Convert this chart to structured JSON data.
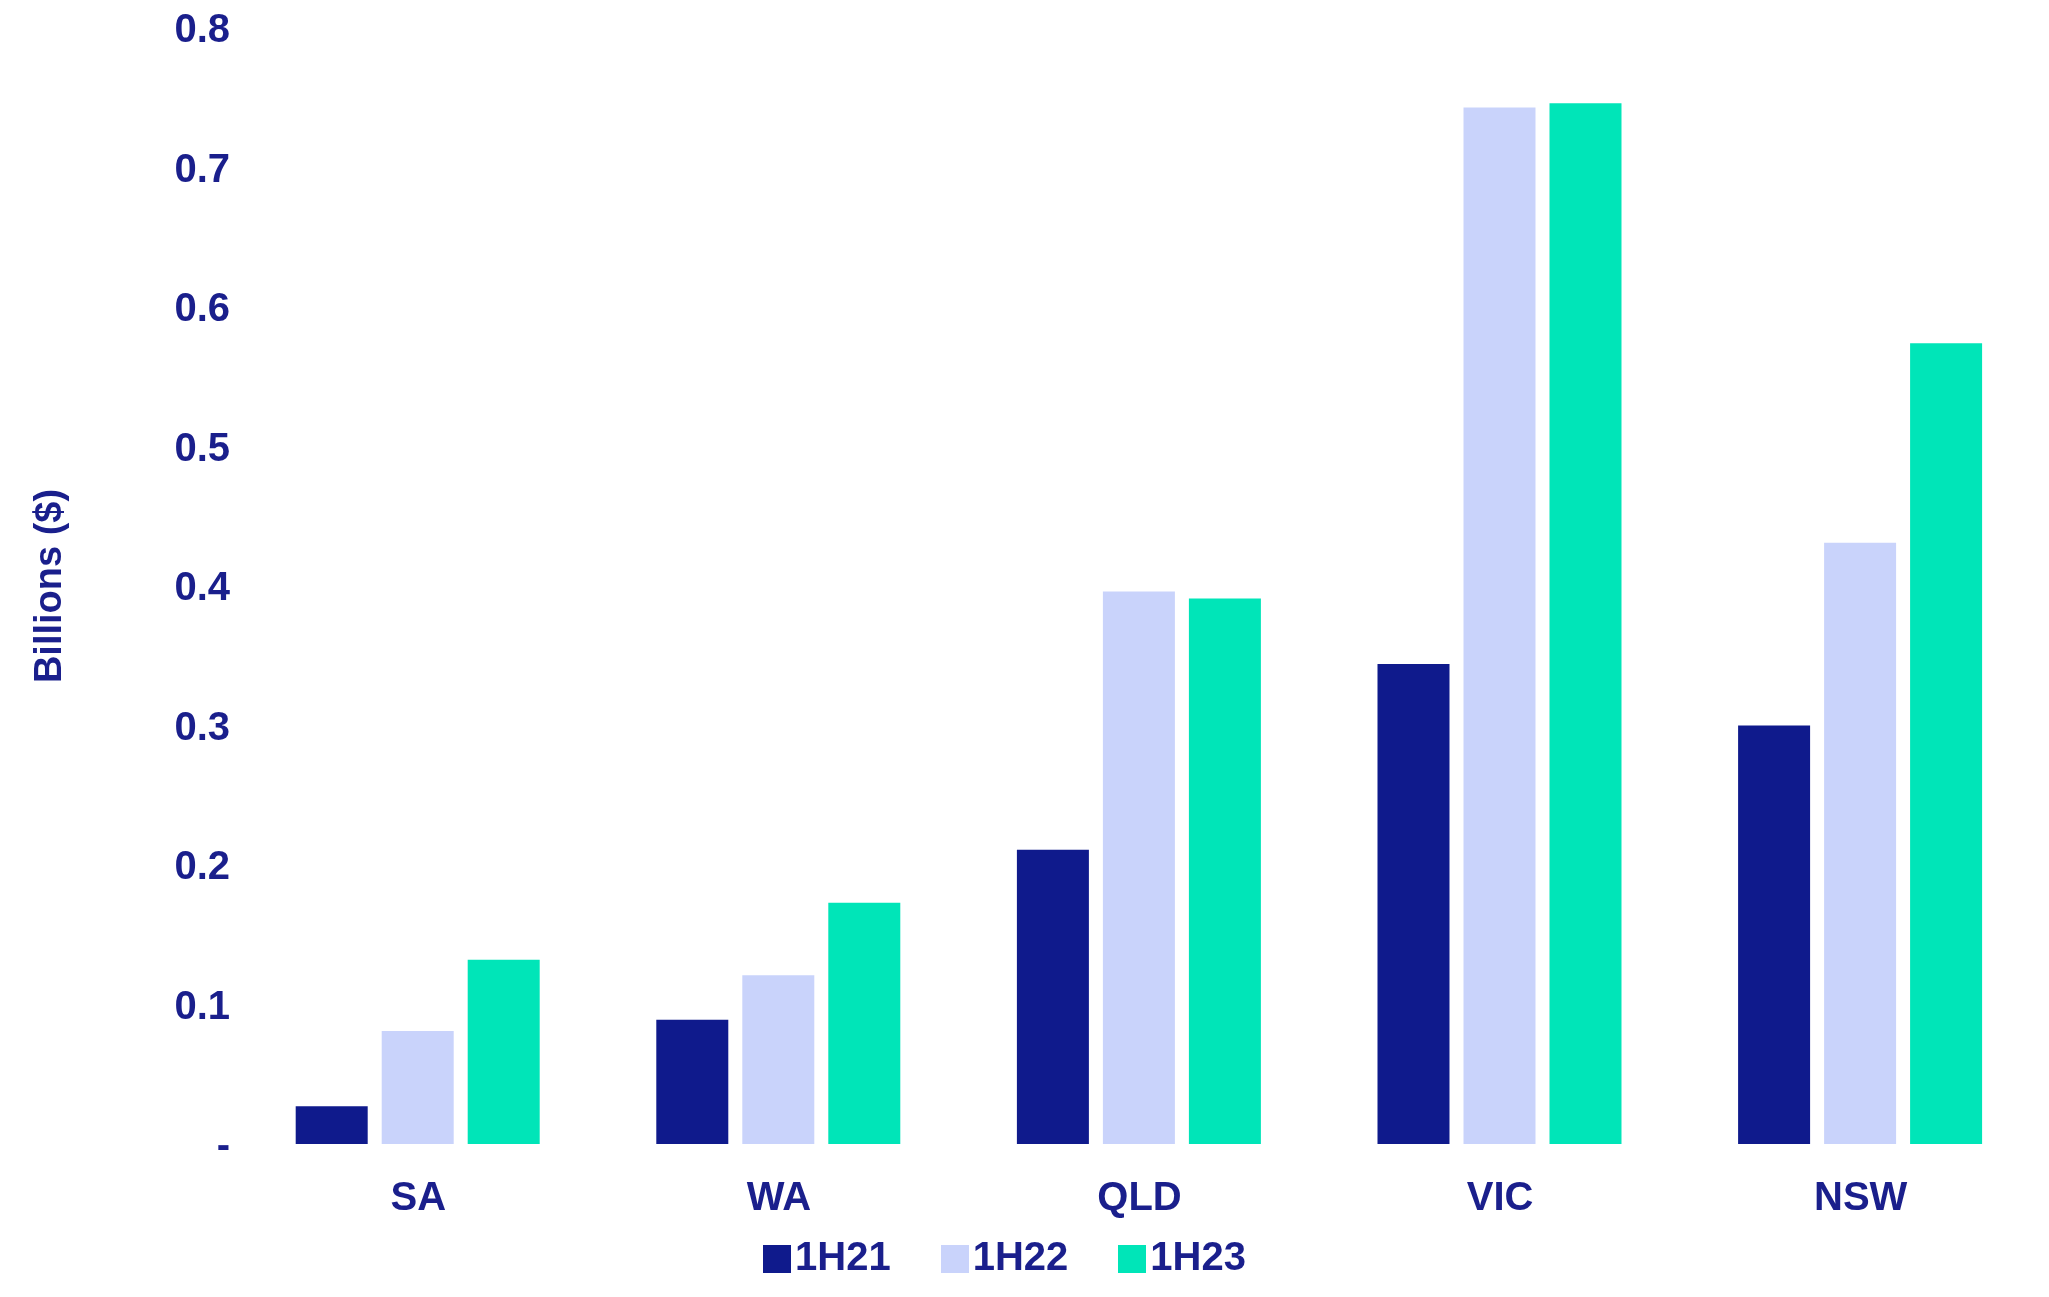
{
  "chart_data": {
    "type": "bar",
    "ylabel": "Billions ($)",
    "categories": [
      "SA",
      "WA",
      "QLD",
      "VIC",
      "NSW"
    ],
    "series": [
      {
        "name": "1H21",
        "color": "#0f1a8c",
        "values": [
          0.027,
          0.089,
          0.211,
          0.344,
          0.3
        ]
      },
      {
        "name": "1H22",
        "color": "#c9d3fb",
        "values": [
          0.081,
          0.121,
          0.396,
          0.743,
          0.431
        ]
      },
      {
        "name": "1H23",
        "color": "#00e5b8",
        "values": [
          0.132,
          0.173,
          0.391,
          0.746,
          0.574
        ]
      }
    ],
    "ylim": [
      0,
      0.8
    ],
    "yticks": [
      {
        "value": 0,
        "label": "-"
      },
      0.1,
      0.2,
      0.3,
      0.4,
      0.5,
      0.6,
      0.7,
      0.8
    ],
    "grid": false,
    "legend": "bottom"
  }
}
